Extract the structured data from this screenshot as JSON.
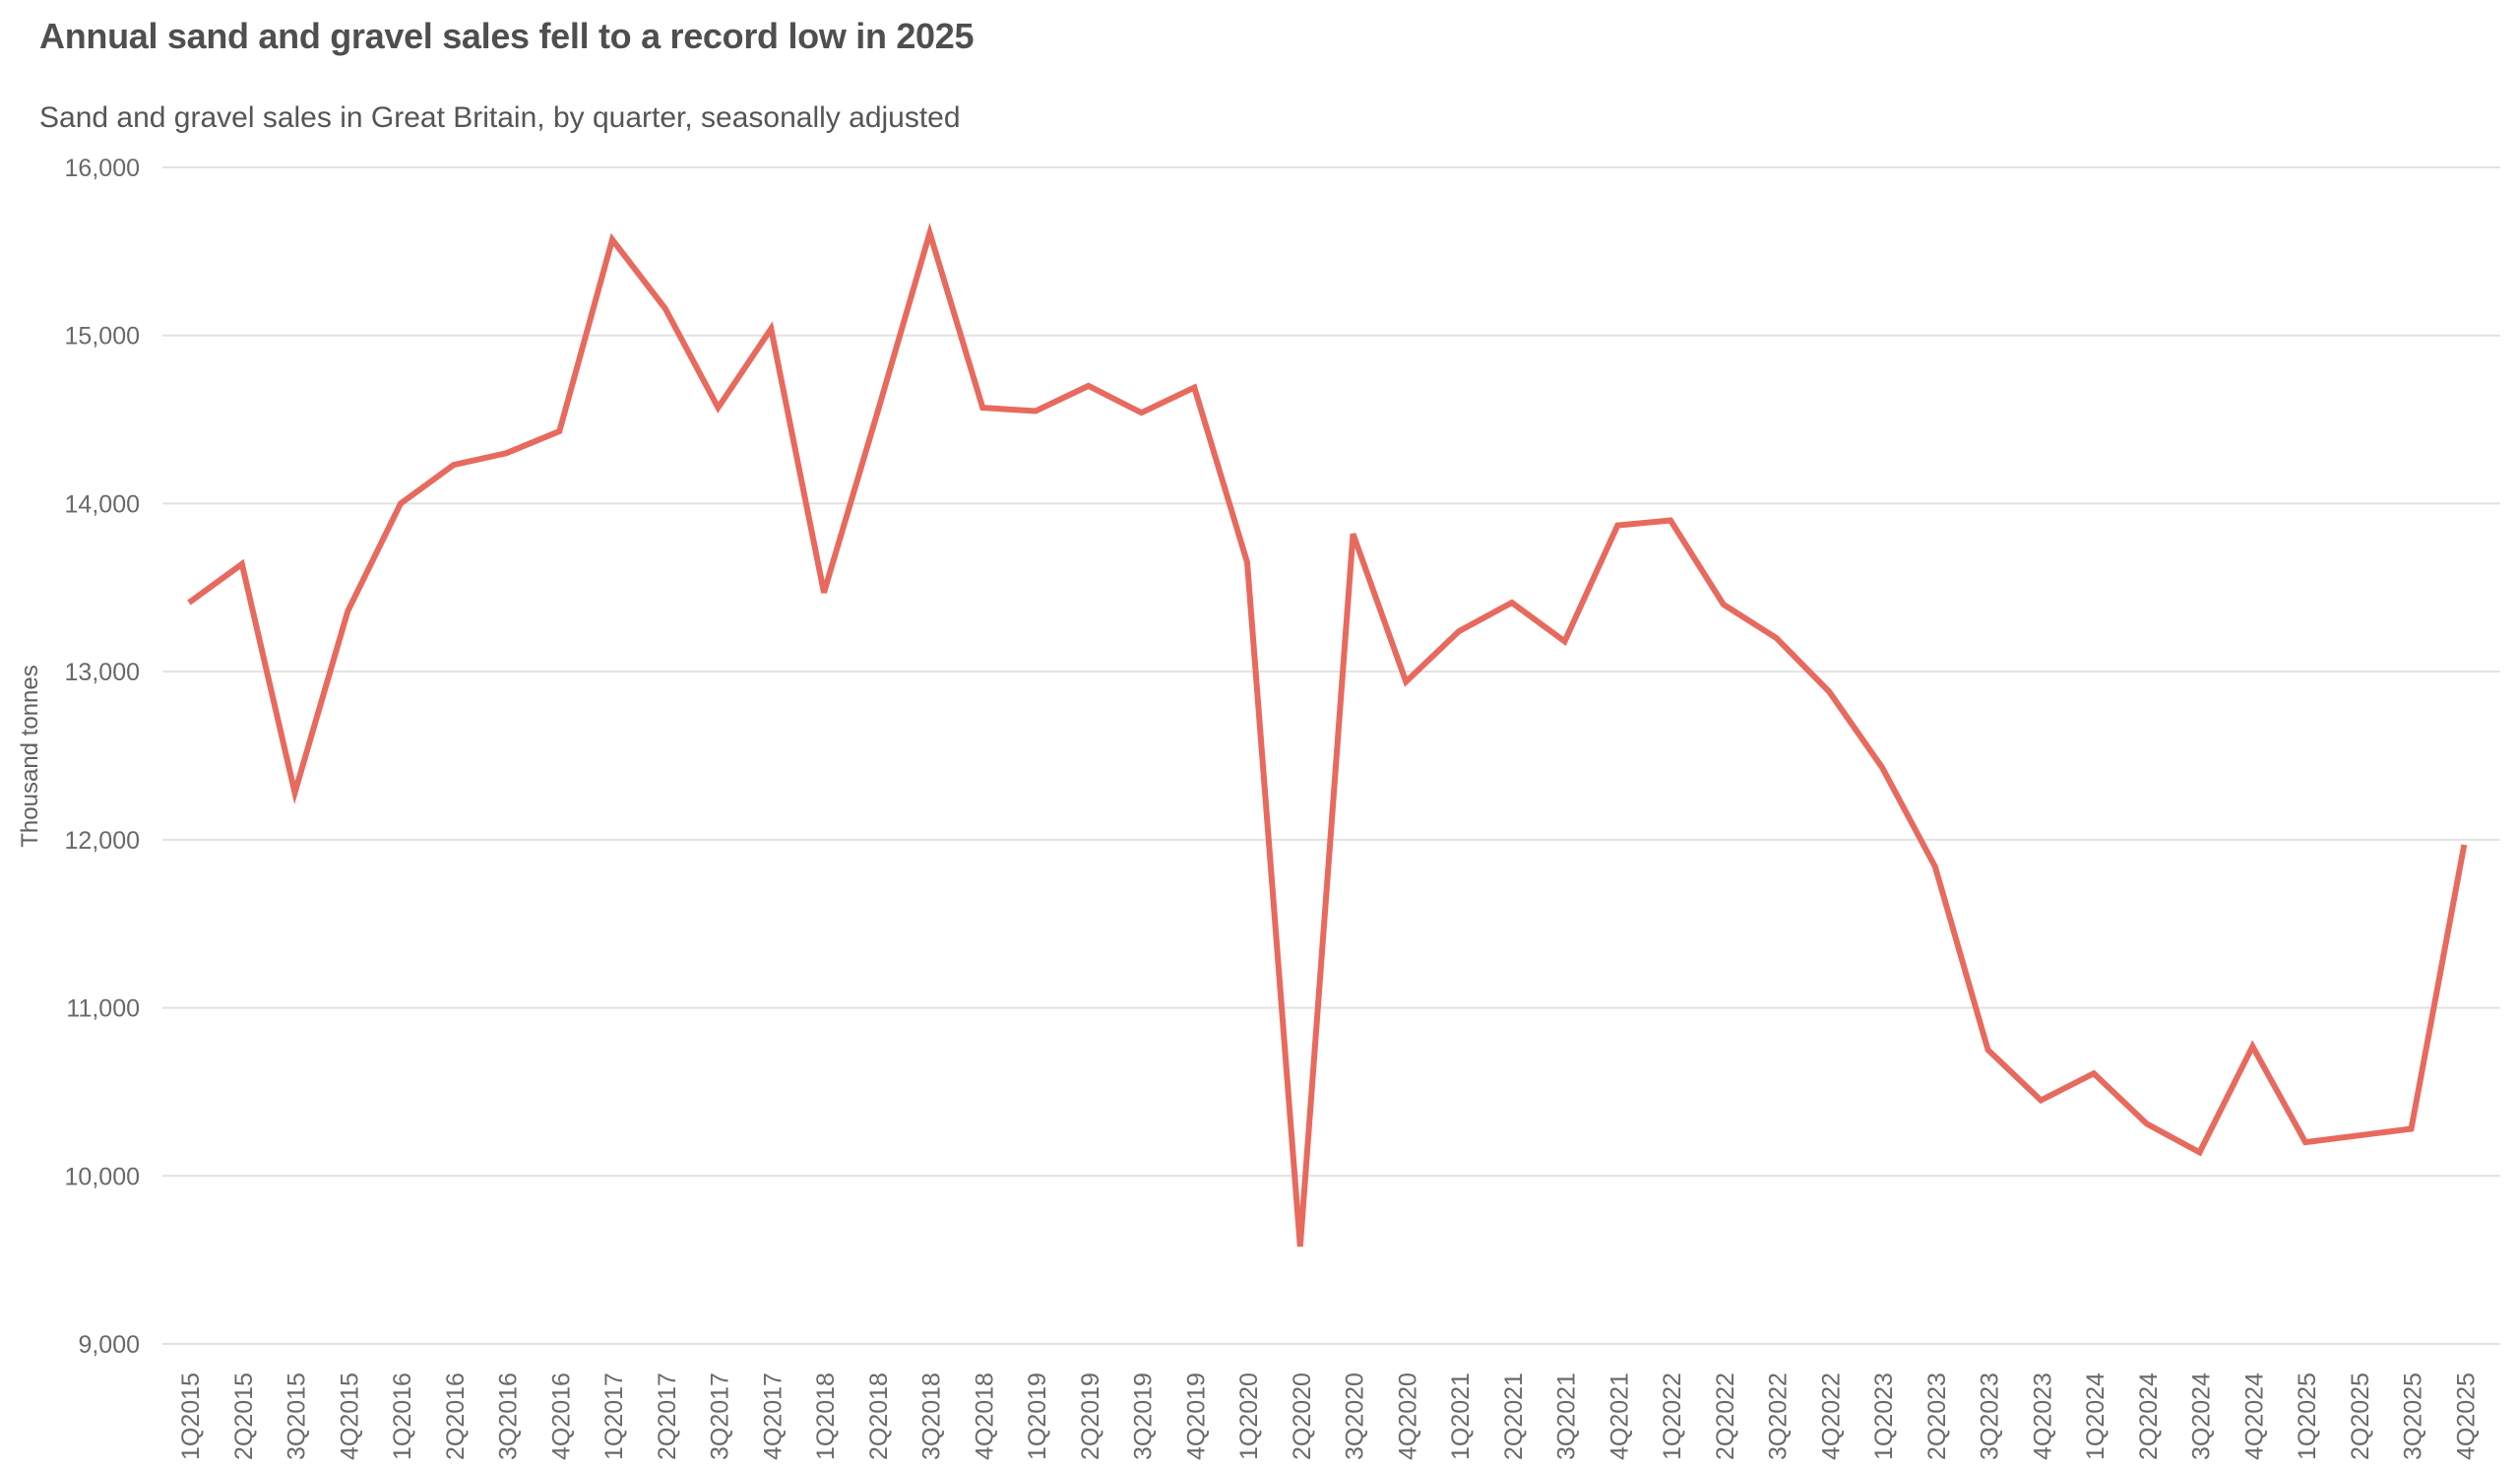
{
  "chart_data": {
    "type": "line",
    "title": "Annual sand and gravel sales fell to a record low in 2025",
    "subtitle": "Sand and gravel sales in Great Britain, by quarter, seasonally adjusted",
    "xlabel": "",
    "ylabel": "Thousand tonnes",
    "ylim": [
      9000,
      16000
    ],
    "ytick_step": 1000,
    "grid": "horizontal",
    "legend": "none",
    "line_color": "#e8695d",
    "grid_color": "#e2e2e2",
    "categories": [
      "1Q2015",
      "2Q2015",
      "3Q2015",
      "4Q2015",
      "1Q2016",
      "2Q2016",
      "3Q2016",
      "4Q2016",
      "1Q2017",
      "2Q2017",
      "3Q2017",
      "4Q2017",
      "1Q2018",
      "2Q2018",
      "3Q2018",
      "4Q2018",
      "1Q2019",
      "2Q2019",
      "3Q2019",
      "4Q2019",
      "1Q2020",
      "2Q2020",
      "3Q2020",
      "4Q2020",
      "1Q2021",
      "2Q2021",
      "3Q2021",
      "4Q2021",
      "1Q2022",
      "2Q2022",
      "3Q2022",
      "4Q2022",
      "1Q2023",
      "2Q2023",
      "3Q2023",
      "4Q2023",
      "1Q2024",
      "2Q2024",
      "3Q2024",
      "4Q2024",
      "1Q2025",
      "2Q2025",
      "3Q2025",
      "4Q2025"
    ],
    "values": [
      13410,
      13640,
      12280,
      13360,
      14000,
      14230,
      14300,
      14430,
      15570,
      15160,
      14570,
      15040,
      13470,
      14530,
      15610,
      14570,
      14550,
      14700,
      14540,
      14690,
      13650,
      9580,
      13820,
      12940,
      13240,
      13410,
      13180,
      13870,
      13900,
      13400,
      13200,
      12880,
      12430,
      11840,
      10750,
      10450,
      10610,
      10310,
      10140,
      10770,
      10200,
      10240,
      10280,
      11970
    ]
  }
}
